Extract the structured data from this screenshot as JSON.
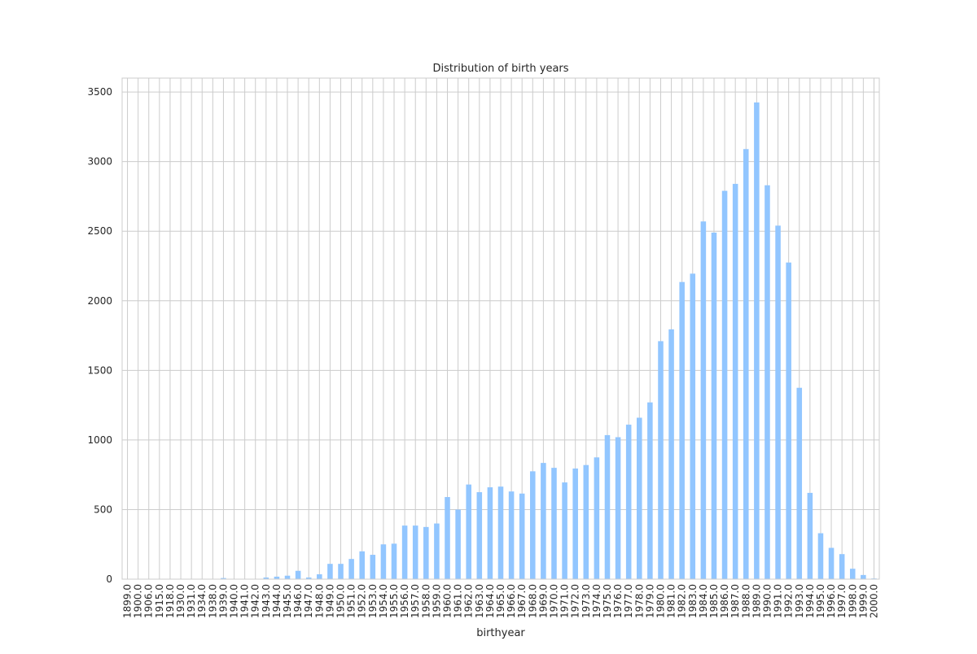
{
  "chart_data": {
    "type": "bar",
    "title": "Distribution of birth years",
    "xlabel": "birthyear",
    "ylabel": "",
    "ylim": [
      0,
      3600
    ],
    "yticks": [
      0,
      500,
      1000,
      1500,
      2000,
      2500,
      3000,
      3500
    ],
    "grid": true,
    "legend": "none",
    "bar_color": "#92c6ff",
    "categories": [
      "1899.0",
      "1900.0",
      "1906.0",
      "1915.0",
      "1918.0",
      "1930.0",
      "1931.0",
      "1934.0",
      "1938.0",
      "1939.0",
      "1940.0",
      "1941.0",
      "1942.0",
      "1943.0",
      "1944.0",
      "1945.0",
      "1946.0",
      "1947.0",
      "1948.0",
      "1949.0",
      "1950.0",
      "1951.0",
      "1952.0",
      "1953.0",
      "1954.0",
      "1955.0",
      "1956.0",
      "1957.0",
      "1958.0",
      "1959.0",
      "1960.0",
      "1961.0",
      "1962.0",
      "1963.0",
      "1964.0",
      "1965.0",
      "1966.0",
      "1967.0",
      "1968.0",
      "1969.0",
      "1970.0",
      "1971.0",
      "1972.0",
      "1973.0",
      "1974.0",
      "1975.0",
      "1976.0",
      "1977.0",
      "1978.0",
      "1979.0",
      "1980.0",
      "1981.0",
      "1982.0",
      "1983.0",
      "1984.0",
      "1985.0",
      "1986.0",
      "1987.0",
      "1988.0",
      "1989.0",
      "1990.0",
      "1991.0",
      "1992.0",
      "1993.0",
      "1994.0",
      "1995.0",
      "1996.0",
      "1997.0",
      "1998.0",
      "1999.0",
      "2000.0"
    ],
    "values": [
      1,
      1,
      1,
      1,
      1,
      1,
      1,
      1,
      1,
      8,
      1,
      1,
      1,
      12,
      18,
      25,
      60,
      12,
      35,
      110,
      110,
      145,
      200,
      175,
      250,
      255,
      385,
      385,
      375,
      400,
      590,
      500,
      680,
      625,
      660,
      665,
      630,
      615,
      775,
      835,
      800,
      695,
      795,
      820,
      875,
      1035,
      1020,
      1110,
      1160,
      1270,
      1710,
      1795,
      2135,
      2195,
      2570,
      2490,
      2790,
      2840,
      3090,
      3425,
      2830,
      2540,
      2275,
      1375,
      620,
      330,
      225,
      180,
      75,
      30,
      5
    ]
  }
}
